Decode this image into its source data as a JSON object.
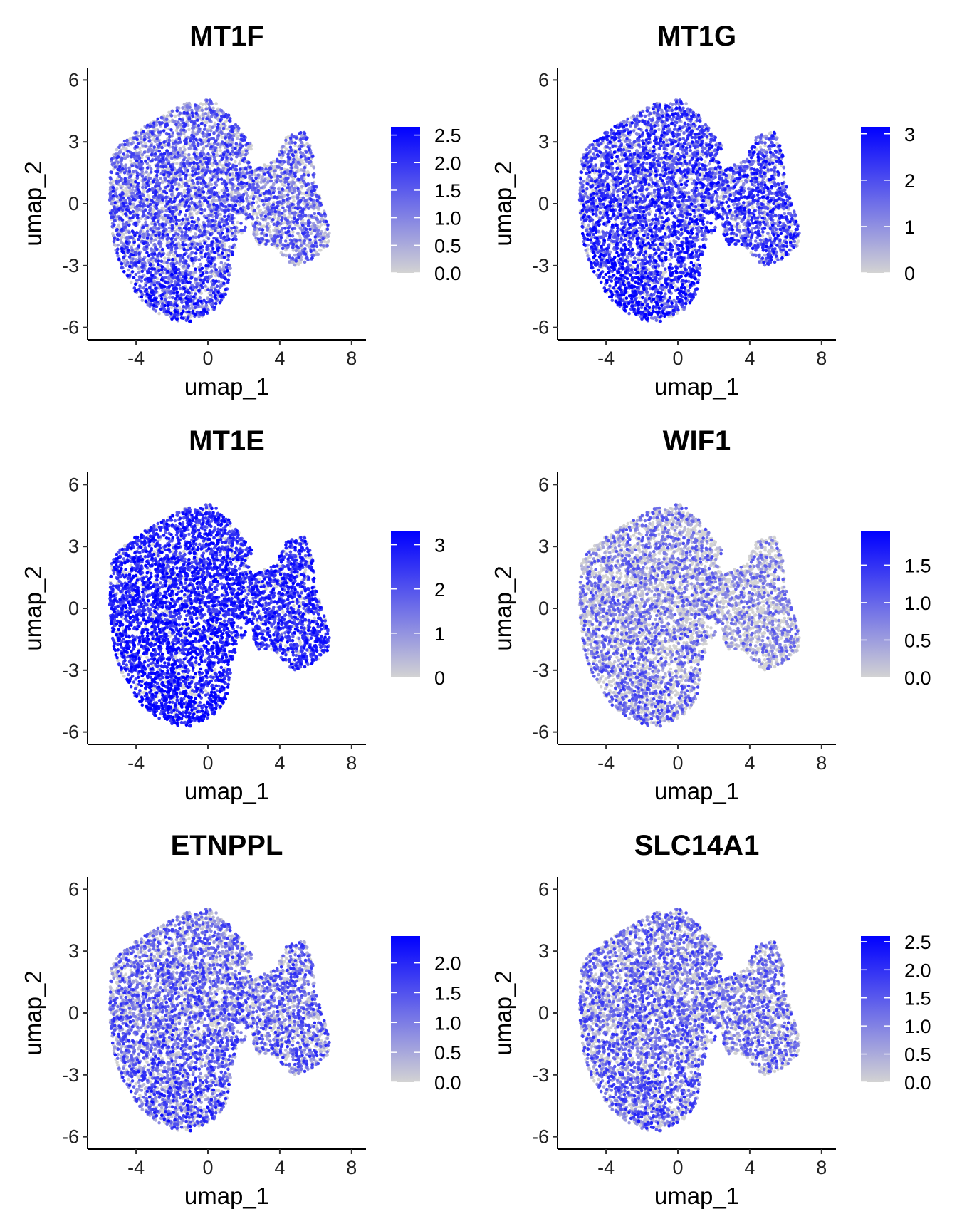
{
  "colors": {
    "low": "#d3d3d3",
    "high": "#0000ff"
  },
  "chart_data": [
    {
      "type": "scatter",
      "title": "MT1F",
      "xlabel": "umap_1",
      "ylabel": "umap_2",
      "xticks": [
        "-4",
        "0",
        "4",
        "8"
      ],
      "yticks": [
        "6",
        "3",
        "0",
        "-3",
        "-6"
      ],
      "xlim": [
        -6.7,
        8.8
      ],
      "ylim": [
        -6.6,
        6.6
      ],
      "legend": {
        "ticks": [
          "2.5",
          "2.0",
          "1.5",
          "1.0",
          "0.5",
          "0.0"
        ],
        "values": [
          2.5,
          2.0,
          1.5,
          1.0,
          0.5,
          0.0
        ],
        "max": 2.65
      },
      "expression": {
        "left": 0.55,
        "bottom": 0.75,
        "right": 0.35,
        "top": 0.35,
        "noise": 0.45
      }
    },
    {
      "type": "scatter",
      "title": "MT1G",
      "xlabel": "umap_1",
      "ylabel": "umap_2",
      "xticks": [
        "-4",
        "0",
        "4",
        "8"
      ],
      "yticks": [
        "6",
        "3",
        "0",
        "-3",
        "-6"
      ],
      "xlim": [
        -6.7,
        8.8
      ],
      "ylim": [
        -6.6,
        6.6
      ],
      "legend": {
        "ticks": [
          "3",
          "2",
          "1",
          "0"
        ],
        "values": [
          3,
          2,
          1,
          0
        ],
        "max": 3.15
      },
      "expression": {
        "left": 0.7,
        "bottom": 0.85,
        "right": 0.6,
        "top": 0.55,
        "noise": 0.4
      }
    },
    {
      "type": "scatter",
      "title": "MT1E",
      "xlabel": "umap_1",
      "ylabel": "umap_2",
      "xticks": [
        "-4",
        "0",
        "4",
        "8"
      ],
      "yticks": [
        "6",
        "3",
        "0",
        "-3",
        "-6"
      ],
      "xlim": [
        -6.7,
        8.8
      ],
      "ylim": [
        -6.6,
        6.6
      ],
      "legend": {
        "ticks": [
          "3",
          "2",
          "1",
          "0"
        ],
        "values": [
          3,
          2,
          1,
          0
        ],
        "max": 3.3
      },
      "expression": {
        "left": 0.85,
        "bottom": 0.9,
        "right": 0.75,
        "top": 0.75,
        "noise": 0.25
      }
    },
    {
      "type": "scatter",
      "title": "WIF1",
      "xlabel": "umap_1",
      "ylabel": "umap_2",
      "xticks": [
        "-4",
        "0",
        "4",
        "8"
      ],
      "yticks": [
        "6",
        "3",
        "0",
        "-3",
        "-6"
      ],
      "xlim": [
        -6.7,
        8.8
      ],
      "ylim": [
        -6.6,
        6.6
      ],
      "legend": {
        "ticks": [
          "1.5",
          "1.0",
          "0.5",
          "0.0"
        ],
        "values": [
          1.5,
          1.0,
          0.5,
          0.0
        ],
        "max": 1.95
      },
      "expression": {
        "left": 0.25,
        "bottom": 0.35,
        "right": 0.12,
        "top": 0.15,
        "noise": 0.5
      }
    },
    {
      "type": "scatter",
      "title": "ETNPPL",
      "xlabel": "umap_1",
      "ylabel": "umap_2",
      "xticks": [
        "-4",
        "0",
        "4",
        "8"
      ],
      "yticks": [
        "6",
        "3",
        "0",
        "-3",
        "-6"
      ],
      "xlim": [
        -6.7,
        8.8
      ],
      "ylim": [
        -6.6,
        6.6
      ],
      "legend": {
        "ticks": [
          "2.0",
          "1.5",
          "1.0",
          "0.5",
          "0.0"
        ],
        "values": [
          2.0,
          1.5,
          1.0,
          0.5,
          0.0
        ],
        "max": 2.45
      },
      "expression": {
        "left": 0.45,
        "bottom": 0.6,
        "right": 0.35,
        "top": 0.3,
        "noise": 0.45
      }
    },
    {
      "type": "scatter",
      "title": "SLC14A1",
      "xlabel": "umap_1",
      "ylabel": "umap_2",
      "xticks": [
        "-4",
        "0",
        "4",
        "8"
      ],
      "yticks": [
        "6",
        "3",
        "0",
        "-3",
        "-6"
      ],
      "xlim": [
        -6.7,
        8.8
      ],
      "ylim": [
        -6.6,
        6.6
      ],
      "legend": {
        "ticks": [
          "2.5",
          "2.0",
          "1.5",
          "1.0",
          "0.5",
          "0.0"
        ],
        "values": [
          2.5,
          2.0,
          1.5,
          1.0,
          0.5,
          0.0
        ],
        "max": 2.6
      },
      "expression": {
        "left": 0.35,
        "bottom": 0.5,
        "right": 0.3,
        "top": 0.3,
        "noise": 0.45
      }
    }
  ]
}
